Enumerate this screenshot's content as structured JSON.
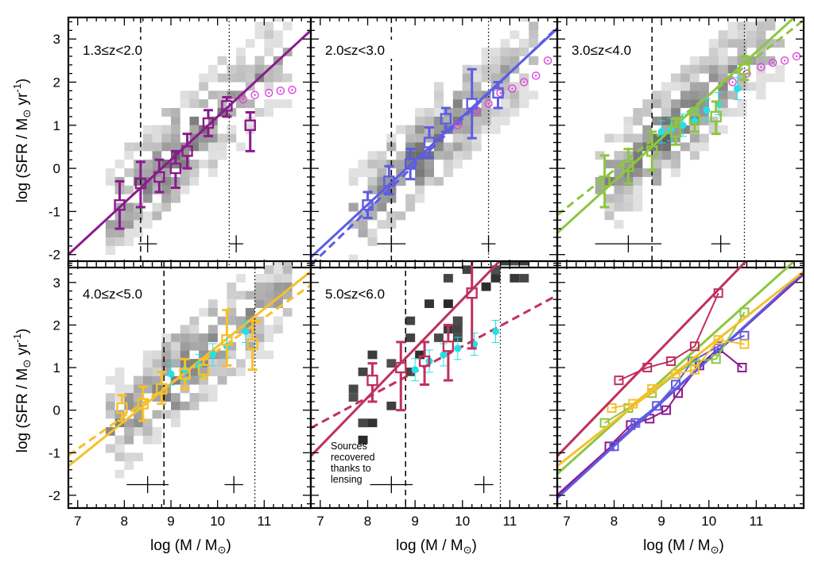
{
  "figure": {
    "xlabel_main": "log (M / M",
    "xlabel_sub": "⊙",
    "xlabel_close": ")",
    "ylabel_main": "log (SFR / M",
    "ylabel_sub": "⊙",
    "ylabel_mid": " yr",
    "ylabel_sup": "-1",
    "ylabel_close": ")",
    "lensing_note": [
      "Sources",
      "recovered",
      "thanks to",
      "lensing"
    ],
    "colors": {
      "z1": "#8B1A8F",
      "z2": "#5C5CE6",
      "z3": "#8DC63F",
      "z4": "#F5C02A",
      "z5": "#C0305E",
      "cyan": "#21E0E8",
      "magenta": "#E040E0"
    }
  },
  "chart_data": [
    {
      "type": "scatter",
      "panel": "1.3≤z<2.0",
      "xlim": [
        6.8,
        12.0
      ],
      "ylim": [
        -2.3,
        3.5
      ],
      "xticks": [
        "7",
        "8",
        "9",
        "10",
        "11"
      ],
      "yticks": [
        "-2",
        "-1",
        "0",
        "1",
        "2",
        "3"
      ],
      "color": "#8B1A8F",
      "binned": {
        "x": [
          7.9,
          8.35,
          8.75,
          9.1,
          9.35,
          9.8,
          10.2,
          10.7
        ],
        "y": [
          -0.85,
          -0.35,
          -0.2,
          0.0,
          0.4,
          1.05,
          1.45,
          1.0
        ],
        "err_lo": [
          0.55,
          0.55,
          0.35,
          0.45,
          0.4,
          0.3,
          0.25,
          0.6
        ],
        "err_hi": [
          0.55,
          0.5,
          0.4,
          0.4,
          0.4,
          0.3,
          0.2,
          0.3
        ]
      },
      "fit": {
        "slope": 1.0,
        "intercept": -8.8,
        "dashed": false
      },
      "vline_dashed": 8.35,
      "vline_dotted": 10.25,
      "ref_points": {
        "x": [
          10.55,
          10.8,
          11.1,
          11.35,
          11.6
        ],
        "y": [
          1.6,
          1.7,
          1.75,
          1.8,
          1.82
        ],
        "color": "#E040E0"
      },
      "error_crosses": [
        {
          "x": 8.5,
          "y": -1.75,
          "xerr": 0.2,
          "yerr": 0.2
        },
        {
          "x": 10.4,
          "y": -1.75,
          "xerr": 0.15,
          "yerr": 0.2
        }
      ]
    },
    {
      "type": "scatter",
      "panel": "2.0≤z<3.0",
      "xlim": [
        6.8,
        12.0
      ],
      "ylim": [
        -2.3,
        3.5
      ],
      "xticks": [
        "7",
        "8",
        "9",
        "10",
        "11"
      ],
      "yticks": [],
      "color": "#5C5CE6",
      "binned": {
        "x": [
          8.0,
          8.45,
          8.9,
          9.3,
          9.65,
          10.2,
          10.75
        ],
        "y": [
          -0.85,
          -0.3,
          0.1,
          0.6,
          1.15,
          1.5,
          1.75
        ],
        "err_lo": [
          0.3,
          0.3,
          0.35,
          0.35,
          0.3,
          0.8,
          0.35
        ],
        "err_hi": [
          0.3,
          0.35,
          0.35,
          0.35,
          0.25,
          0.8,
          0.25
        ]
      },
      "fit": {
        "slope": 1.02,
        "intercept": -9.0,
        "dashed": false
      },
      "fit2": {
        "slope": 1.06,
        "intercept": -9.45,
        "dashed": true
      },
      "vline_dashed": 8.5,
      "vline_dotted": 10.55,
      "ref_points": {
        "x": [
          9.9,
          10.3,
          10.55,
          10.8,
          11.05,
          11.3,
          11.55,
          11.8
        ],
        "y": [
          1.0,
          1.35,
          1.5,
          1.75,
          1.85,
          2.0,
          2.15,
          2.5
        ],
        "color": "#E040E0"
      },
      "error_crosses": [
        {
          "x": 8.5,
          "y": -1.75,
          "xerr": 0.3,
          "yerr": 0.2
        },
        {
          "x": 10.55,
          "y": -1.75,
          "xerr": 0.15,
          "yerr": 0.2
        }
      ]
    },
    {
      "type": "scatter",
      "panel": "3.0≤z<4.0",
      "xlim": [
        6.8,
        12.0
      ],
      "ylim": [
        -2.3,
        3.5
      ],
      "xticks": [
        "7",
        "8",
        "9",
        "10",
        "11"
      ],
      "yticks": [],
      "color": "#8DC63F",
      "binned": {
        "x": [
          7.8,
          8.3,
          8.8,
          9.3,
          9.7,
          10.15,
          10.75
        ],
        "y": [
          -0.3,
          0.05,
          0.4,
          0.85,
          1.15,
          1.2,
          2.3
        ],
        "err_lo": [
          0.6,
          0.4,
          0.45,
          0.3,
          0.3,
          0.4,
          0.25
        ],
        "err_hi": [
          0.6,
          0.4,
          0.45,
          0.3,
          0.25,
          0.35,
          0.3
        ]
      },
      "fit": {
        "slope": 1.0,
        "intercept": -8.3,
        "dashed": false
      },
      "fit2": {
        "slope": 0.87,
        "intercept": -7.0,
        "dashed": true
      },
      "vline_dashed": 8.8,
      "vline_dotted": 10.75,
      "ref_points": {
        "x": [
          10.5,
          10.8,
          11.1,
          11.35,
          11.6,
          11.85
        ],
        "y": [
          2.0,
          2.2,
          2.35,
          2.45,
          2.5,
          2.6
        ],
        "color": "#E040E0"
      },
      "cyan": {
        "x": [
          9.0,
          9.2,
          9.45,
          9.7,
          9.95,
          10.2,
          10.6
        ],
        "y": [
          0.85,
          0.9,
          1.0,
          1.1,
          1.35,
          1.5,
          1.85
        ]
      },
      "error_crosses": [
        {
          "x": 8.3,
          "y": -1.75,
          "xerr": 0.7,
          "yerr": 0.2
        },
        {
          "x": 10.25,
          "y": -1.75,
          "xerr": 0.2,
          "yerr": 0.2
        }
      ]
    },
    {
      "type": "scatter",
      "panel": "4.0≤z<5.0",
      "xlim": [
        6.8,
        12.0
      ],
      "ylim": [
        -2.3,
        3.5
      ],
      "xticks": [
        "7",
        "8",
        "9",
        "10",
        "11"
      ],
      "yticks": [
        "-2",
        "-1",
        "0",
        "1",
        "2",
        "3"
      ],
      "color": "#F5C02A",
      "binned": {
        "x": [
          7.95,
          8.4,
          8.8,
          9.3,
          9.7,
          10.2,
          10.75
        ],
        "y": [
          0.05,
          0.15,
          0.5,
          0.85,
          0.95,
          1.65,
          1.55
        ],
        "err_lo": [
          0.3,
          0.4,
          0.35,
          0.35,
          0.2,
          0.6,
          0.6
        ],
        "err_hi": [
          0.3,
          0.4,
          0.4,
          0.35,
          0.25,
          0.7,
          0.55
        ]
      },
      "fit": {
        "slope": 0.88,
        "intercept": -7.3,
        "dashed": false
      },
      "fit2": {
        "slope": 0.77,
        "intercept": -6.3,
        "dashed": true
      },
      "vline_dashed": 8.85,
      "vline_dotted": 10.8,
      "cyan": {
        "x": [
          9.0,
          9.3,
          9.6,
          9.9,
          10.2,
          10.6
        ],
        "y": [
          0.85,
          0.95,
          1.05,
          1.3,
          1.5,
          1.85
        ]
      },
      "error_crosses": [
        {
          "x": 8.5,
          "y": -1.75,
          "xerr": 0.45,
          "yerr": 0.2
        },
        {
          "x": 10.35,
          "y": -1.75,
          "xerr": 0.2,
          "yerr": 0.2
        }
      ]
    },
    {
      "type": "scatter",
      "panel": "5.0≤z<6.0",
      "xlim": [
        6.8,
        12.0
      ],
      "ylim": [
        -2.3,
        3.5
      ],
      "xticks": [
        "7",
        "8",
        "9",
        "10",
        "11"
      ],
      "yticks": [],
      "color": "#C0305E",
      "binned": {
        "x": [
          8.1,
          8.7,
          9.2,
          9.7,
          10.2
        ],
        "y": [
          0.7,
          1.0,
          1.15,
          1.5,
          2.75
        ],
        "err_lo": [
          0.5,
          1.0,
          0.55,
          0.8,
          1.3
        ],
        "err_hi": [
          0.4,
          0.6,
          0.45,
          0.5,
          0.9
        ]
      },
      "fit": {
        "slope": 1.15,
        "intercept": -8.9,
        "dashed": false
      },
      "fit2": {
        "slope": 0.6,
        "intercept": -4.5,
        "dashed": true
      },
      "vline_dashed": 8.8,
      "vline_dotted": 10.8,
      "cyan": {
        "x": [
          9.0,
          9.3,
          9.6,
          9.9,
          10.25,
          10.7
        ],
        "y": [
          0.95,
          1.15,
          1.3,
          1.45,
          1.55,
          1.85
        ]
      },
      "error_crosses": [
        {
          "x": 8.5,
          "y": -1.75,
          "xerr": 0.45,
          "yerr": 0.2
        },
        {
          "x": 10.45,
          "y": -1.75,
          "xerr": 0.2,
          "yerr": 0.2
        }
      ]
    },
    {
      "type": "line",
      "panel": "",
      "xlim": [
        6.8,
        12.0
      ],
      "ylim": [
        -2.3,
        3.5
      ],
      "xticks": [
        "7",
        "8",
        "9",
        "10",
        "11"
      ],
      "yticks": [],
      "series": [
        {
          "color": "#8B1A8F",
          "x": [
            7.9,
            8.35,
            8.75,
            9.1,
            9.35,
            9.8,
            10.2,
            10.7
          ],
          "y": [
            -0.85,
            -0.35,
            -0.2,
            0.0,
            0.4,
            1.05,
            1.45,
            1.0
          ],
          "slope": 1.0,
          "intercept": -8.8
        },
        {
          "color": "#5C5CE6",
          "x": [
            8.0,
            8.45,
            8.9,
            9.3,
            9.65,
            10.2,
            10.75
          ],
          "y": [
            -0.85,
            -0.3,
            0.1,
            0.6,
            1.15,
            1.5,
            1.75
          ],
          "slope": 1.02,
          "intercept": -9.0
        },
        {
          "color": "#8DC63F",
          "x": [
            7.8,
            8.3,
            8.8,
            9.3,
            9.7,
            10.15,
            10.75
          ],
          "y": [
            -0.3,
            0.05,
            0.4,
            0.85,
            1.15,
            1.2,
            2.3
          ],
          "slope": 1.0,
          "intercept": -8.3
        },
        {
          "color": "#F5C02A",
          "x": [
            7.95,
            8.4,
            8.8,
            9.3,
            9.7,
            10.2,
            10.75
          ],
          "y": [
            0.05,
            0.15,
            0.5,
            0.85,
            0.95,
            1.65,
            1.55
          ],
          "slope": 0.88,
          "intercept": -7.3
        },
        {
          "color": "#C0305E",
          "x": [
            8.1,
            8.7,
            9.2,
            9.7,
            10.2
          ],
          "y": [
            0.7,
            1.0,
            1.15,
            1.5,
            2.75
          ],
          "slope": 1.15,
          "intercept": -8.9
        }
      ]
    }
  ]
}
